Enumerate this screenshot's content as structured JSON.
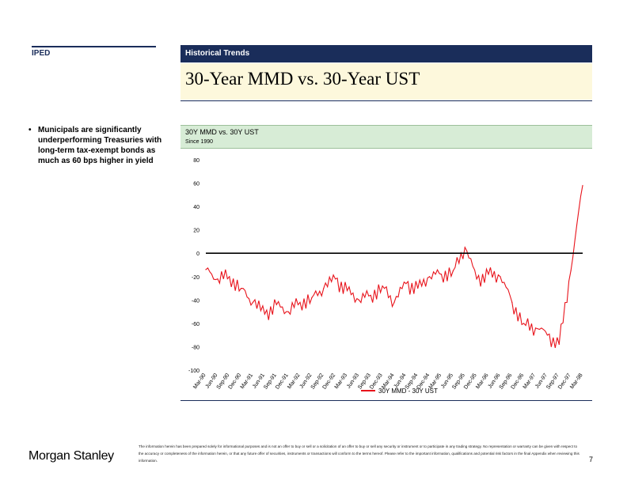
{
  "section": {
    "label": "IPED"
  },
  "header": {
    "label": "Historical Trends"
  },
  "slide": {
    "title": "30-Year MMD vs. 30-Year UST"
  },
  "bullets": [
    "Municipals are significantly underperforming Treasuries with long-term tax-exempt bonds as much as 60 bps higher in yield"
  ],
  "chart_header": {
    "title": "30Y MMD vs. 30Y UST",
    "subtitle": "Since 1990"
  },
  "colors": {
    "navy": "#1a2d5a",
    "series": "#e8131b",
    "title_bg": "#fdf8dc",
    "chart_bg": "#d7ecd6"
  },
  "chart_data": {
    "type": "line",
    "title": "",
    "xlabel": "",
    "ylabel": "",
    "ylim": [
      -100,
      80
    ],
    "yticks": [
      80,
      60,
      40,
      20,
      0,
      -20,
      -40,
      -60,
      -80,
      -100
    ],
    "zero_line": true,
    "legend_position": "bottom-center",
    "x_tick_labels": [
      "Mar-90",
      "Jun-90",
      "Sep-90",
      "Dec-90",
      "Mar-91",
      "Jun-91",
      "Sep-91",
      "Dec-91",
      "Mar-92",
      "Jun-92",
      "Sep-92",
      "Dec-92",
      "Mar-93",
      "Jun-93",
      "Sep-93",
      "Dec-93",
      "Mar-94",
      "Jun-94",
      "Sep-94",
      "Dec-94",
      "Mar-95",
      "Jun-95",
      "Sep-95",
      "Dec-95",
      "Mar-96",
      "Jun-96",
      "Sep-96",
      "Dec-96",
      "Mar-97",
      "Jun-97",
      "Sep-97",
      "Dec-97",
      "Mar-98"
    ],
    "series": [
      {
        "name": "30Y MMD - 30Y UST",
        "x": [
          "Mar-90",
          "Jun-90",
          "Sep-90",
          "Dec-90",
          "Mar-91",
          "Jun-91",
          "Sep-91",
          "Dec-91",
          "Mar-92",
          "Jun-92",
          "Sep-92",
          "Dec-92",
          "Mar-93",
          "Jun-93",
          "Sep-93",
          "Dec-93",
          "Mar-94",
          "Jun-94",
          "Sep-94",
          "Dec-94",
          "Mar-95",
          "Jun-95",
          "Sep-95",
          "Dec-95",
          "Mar-96",
          "Jun-96",
          "Sep-96",
          "Dec-96",
          "Mar-97",
          "Jun-97",
          "Sep-97",
          "Dec-97",
          "Mar-98"
        ],
        "values": [
          -14,
          -22,
          -20,
          -30,
          -42,
          -52,
          -44,
          -50,
          -42,
          -38,
          -30,
          -22,
          -32,
          -40,
          -36,
          -28,
          -42,
          -26,
          -30,
          -20,
          -18,
          -15,
          5,
          -22,
          -18,
          -20,
          -42,
          -60,
          -64,
          -70,
          -78,
          -15,
          58
        ]
      }
    ]
  },
  "footer": {
    "logo": "Morgan Stanley",
    "disclaimer": "The information herein has been prepared solely for informational purposes and is not an offer to buy or sell or a solicitation of an offer to buy or sell any security or instrument or to participate in any trading strategy. No representation or warranty can be given with respect to the accuracy or completeness of the information herein, or that any future offer of securities, instruments or transactions will conform to the terms hereof. Please refer to the important information, qualifications and potential risk factors in the final Appendix when reviewing this information.",
    "page": "7"
  }
}
